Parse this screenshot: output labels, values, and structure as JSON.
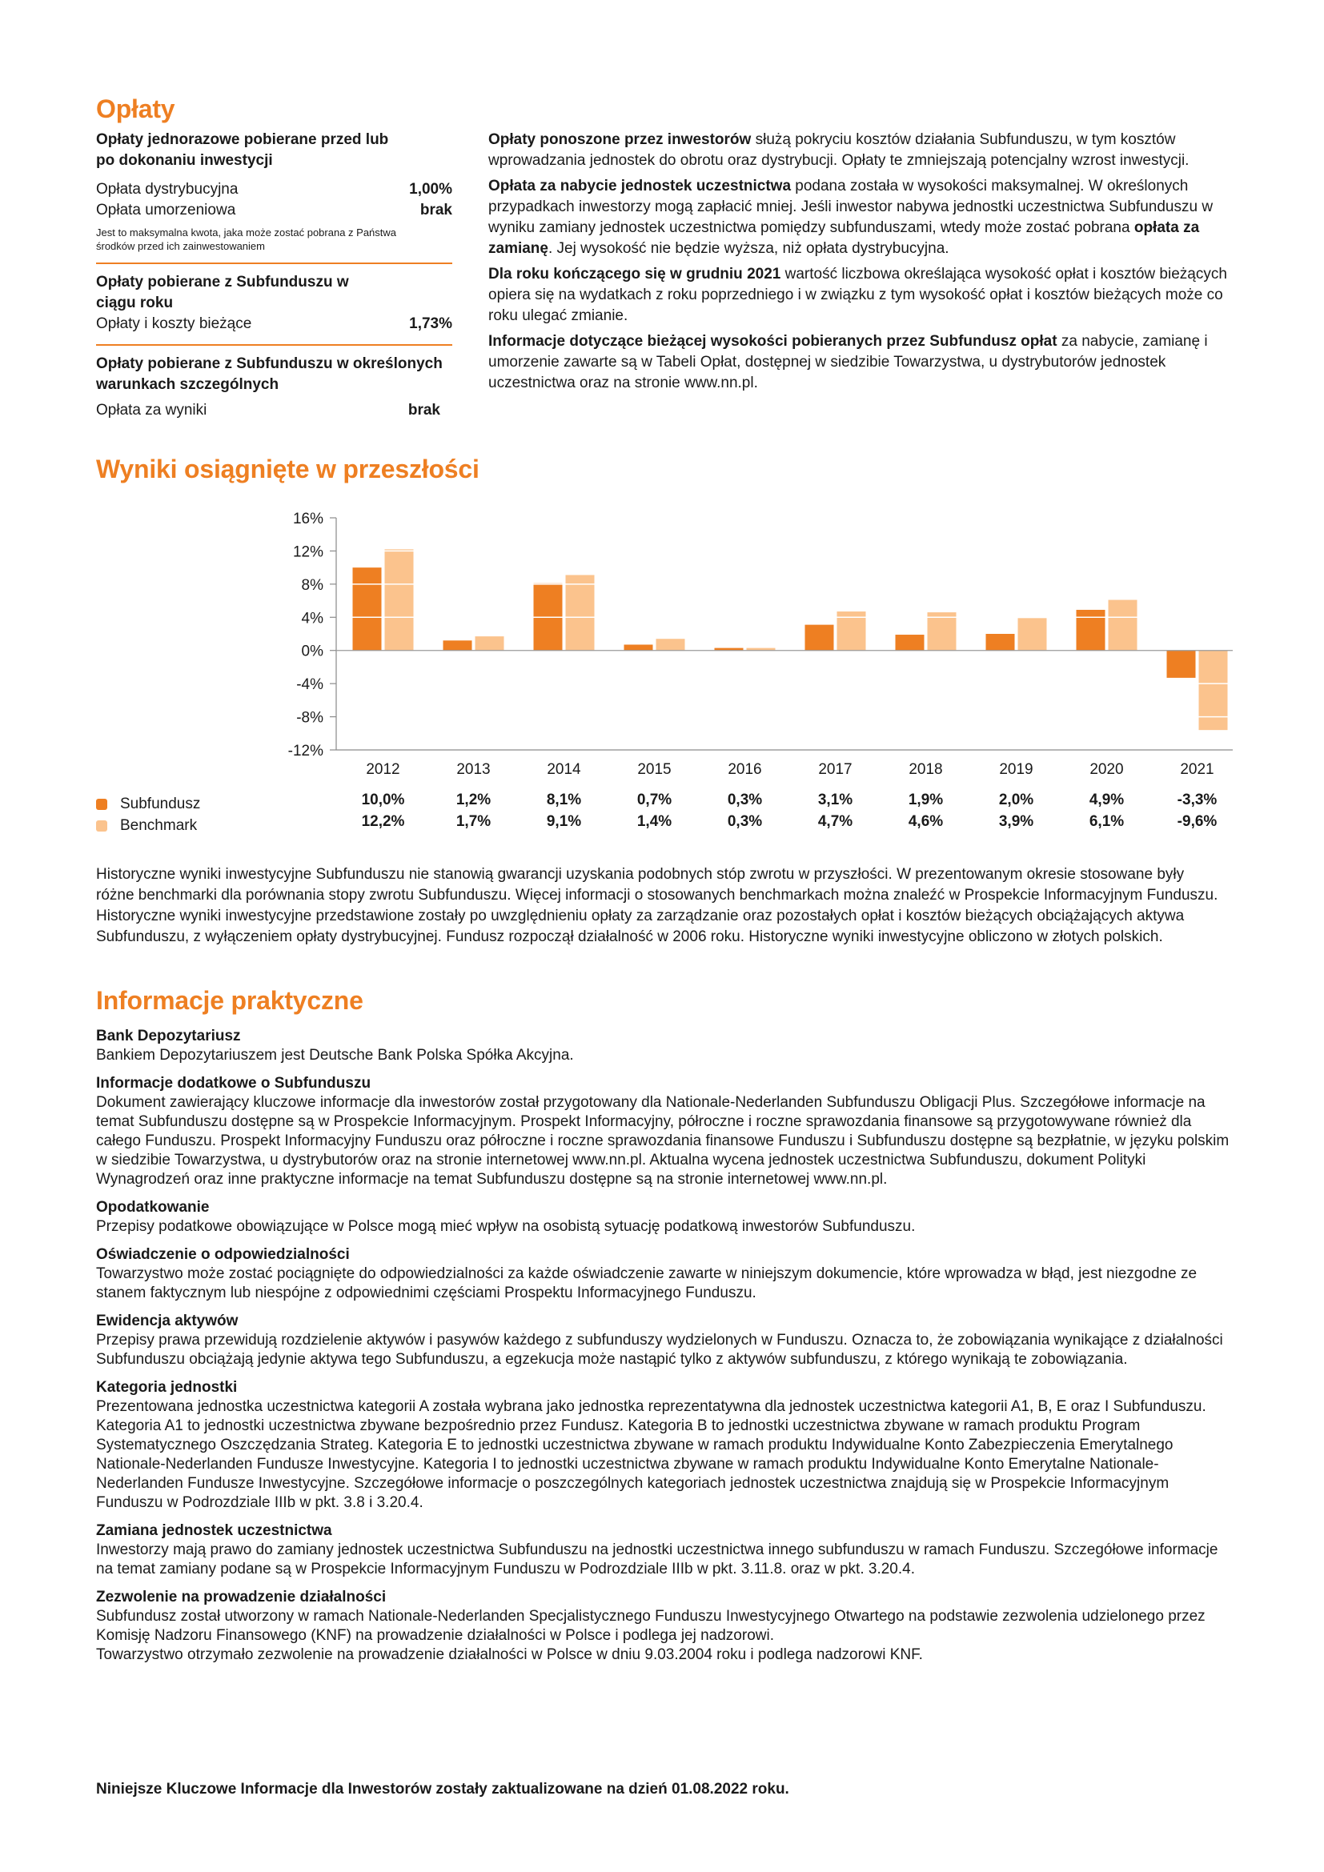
{
  "fees": {
    "title": "Opłaty",
    "group1_title": "Opłaty jednorazowe pobierane przed lub po dokonaniu inwestycji",
    "dist_label": "Opłata dystrybucyjna",
    "dist_value": "1,00%",
    "redemption_label": "Opłata umorzeniowa",
    "redemption_value": "brak",
    "max_note": "Jest to maksymalna kwota, jaka może zostać pobrana z Państwa środków przed ich zainwestowaniem",
    "group2_title": "Opłaty pobierane z Subfunduszu w ciągu roku",
    "ongoing_label": "Opłaty i koszty bieżące",
    "ongoing_value": "1,73%",
    "group3_title": "Opłaty pobierane z Subfunduszu w określonych warunkach szczególnych",
    "perf_label": "Opłata za wyniki",
    "perf_value": "brak",
    "p1_bold": "Opłaty ponoszone przez inwestorów",
    "p1_text": " służą pokryciu kosztów działania Subfunduszu, w tym kosztów wprowadzania jednostek do obrotu oraz dystrybucji. Opłaty te zmniejszają potencjalny wzrost inwestycji.",
    "p2_bold": "Opłata za nabycie jednostek uczestnictwa",
    "p2_text": " podana została w wysokości maksymalnej. W określonych przypadkach inwestorzy mogą zapłacić mniej. Jeśli inwestor nabywa jednostki uczestnictwa Subfunduszu w wyniku zamiany jednostek uczestnictwa pomiędzy subfunduszami, wtedy może zostać pobrana ",
    "p2_bold2": "opłata za zamianę",
    "p2_text2": ". Jej wysokość nie będzie wyższa, niż opłata dystrybucyjna.",
    "p3_bold": "Dla roku kończącego się w grudniu 2021",
    "p3_text": " wartość liczbowa określająca wysokość opłat i kosztów bieżących opiera się na wydatkach z roku poprzedniego i w związku z tym wysokość opłat i kosztów bieżących może co roku ulegać zmianie.",
    "p4_bold": "Informacje dotyczące bieżącej wysokości pobieranych przez Subfundusz opłat",
    "p4_text": " za nabycie, zamianę i umorzenie zawarte są w Tabeli Opłat, dostępnej w siedzibie Towarzystwa, u dystrybutorów jednostek uczestnictwa oraz na stronie www.nn.pl."
  },
  "performance": {
    "title": "Wyniki osiągnięte w przeszłości",
    "subfund_values_text": [
      "10,0%",
      "1,2%",
      "8,1%",
      "0,7%",
      "0,3%",
      "3,1%",
      "1,9%",
      "2,0%",
      "4,9%",
      "-3,3%"
    ],
    "benchmark_values_text": [
      "12,2%",
      "1,7%",
      "9,1%",
      "1,4%",
      "0,3%",
      "4,7%",
      "4,6%",
      "3,9%",
      "6,1%",
      "-9,6%"
    ],
    "history_text": "Historyczne wyniki inwestycyjne Subfunduszu nie stanowią gwarancji uzyskania podobnych stóp zwrotu w przyszłości. W prezentowanym okresie stosowane były różne benchmarki dla porównania stopy zwrotu Subfunduszu. Więcej informacji o stosowanych benchmarkach można znaleźć w Prospekcie Informacyjnym Funduszu. Historyczne wyniki inwestycyjne przedstawione zostały po uwzględnieniu opłaty za zarządzanie oraz pozostałych opłat i kosztów bieżących obciążających aktywa Subfunduszu, z wyłączeniem opłaty dystrybucyjnej. Fundusz rozpoczął działalność w 2006 roku. Historyczne wyniki inwestycyjne obliczono w złotych polskich."
  },
  "chart_data": {
    "type": "bar",
    "categories": [
      "2012",
      "2013",
      "2014",
      "2015",
      "2016",
      "2017",
      "2018",
      "2019",
      "2020",
      "2021"
    ],
    "series": [
      {
        "name": "Subfundusz",
        "values": [
          10.0,
          1.2,
          8.1,
          0.7,
          0.3,
          3.1,
          1.9,
          2.0,
          4.9,
          -3.3
        ],
        "color": "#ee7f22"
      },
      {
        "name": "Benchmark",
        "values": [
          12.2,
          1.7,
          9.1,
          1.4,
          0.3,
          4.7,
          4.6,
          3.9,
          6.1,
          -9.6
        ],
        "color": "#fbc38d"
      }
    ],
    "yticks": [
      "16%",
      "12%",
      "8%",
      "4%",
      "0%",
      "-4%",
      "-8%",
      "-12%"
    ],
    "ylim": [
      -12,
      16
    ],
    "ytick_values": [
      16,
      12,
      8,
      4,
      0,
      -4,
      -8,
      -12
    ],
    "gridlines": "white horizontal lines every 4% across bars",
    "legend_position": "bottom-left"
  },
  "info": {
    "title": "Informacje praktyczne",
    "sections": [
      {
        "title": "Bank Depozytariusz",
        "body": "Bankiem Depozytariuszem jest Deutsche Bank Polska Spółka Akcyjna."
      },
      {
        "title": "Informacje dodatkowe o Subfunduszu",
        "body": "Dokument zawierający kluczowe informacje dla inwestorów został przygotowany dla Nationale-Nederlanden Subfunduszu Obligacji Plus. Szczegółowe informacje na temat Subfunduszu dostępne są w Prospekcie Informacyjnym. Prospekt Informacyjny, półroczne i roczne sprawozdania finansowe są przygotowywane również dla całego Funduszu. Prospekt Informacyjny Funduszu oraz półroczne i roczne sprawozdania finansowe Funduszu i Subfunduszu dostępne są bezpłatnie, w języku polskim w siedzibie Towarzystwa, u dystrybutorów oraz na stronie internetowej www.nn.pl. Aktualna wycena jednostek uczestnictwa Subfunduszu, dokument Polityki Wynagrodzeń oraz inne praktyczne informacje na temat Subfunduszu dostępne są na stronie internetowej www.nn.pl."
      },
      {
        "title": "Opodatkowanie",
        "body": "Przepisy podatkowe obowiązujące w Polsce mogą mieć wpływ na osobistą sytuację podatkową inwestorów Subfunduszu."
      },
      {
        "title": "Oświadczenie o odpowiedzialności",
        "body": "Towarzystwo może zostać pociągnięte do odpowiedzialności za każde oświadczenie zawarte w niniejszym dokumencie, które wprowadza w błąd, jest niezgodne ze stanem faktycznym lub niespójne z odpowiednimi częściami Prospektu Informacyjnego Funduszu."
      },
      {
        "title": "Ewidencja aktywów",
        "body": "Przepisy prawa przewidują rozdzielenie aktywów i pasywów każdego z subfunduszy wydzielonych w Funduszu. Oznacza to, że zobowiązania wynikające z działalności Subfunduszu obciążają jedynie aktywa tego Subfunduszu, a egzekucja może nastąpić tylko z aktywów subfunduszu, z którego wynikają te zobowiązania."
      },
      {
        "title": "Kategoria jednostki",
        "body": "Prezentowana jednostka uczestnictwa kategorii A została wybrana jako jednostka reprezentatywna dla jednostek uczestnictwa kategorii A1, B, E oraz I Subfunduszu. Kategoria A1 to jednostki uczestnictwa zbywane bezpośrednio przez Fundusz. Kategoria B to jednostki uczestnictwa zbywane w ramach produktu Program Systematycznego Oszczędzania Strateg. Kategoria E to jednostki uczestnictwa zbywane w ramach produktu Indywidualne Konto Zabezpieczenia Emerytalnego Nationale-Nederlanden Fundusze Inwestycyjne. Kategoria I to jednostki uczestnictwa zbywane w ramach produktu Indywidualne Konto Emerytalne Nationale-Nederlanden Fundusze Inwestycyjne. Szczegółowe informacje o poszczególnych kategoriach jednostek uczestnictwa znajdują się w Prospekcie Informacyjnym Funduszu w Podrozdziale IIIb w pkt. 3.8 i 3.20.4."
      },
      {
        "title": "Zamiana jednostek uczestnictwa",
        "body": "Inwestorzy mają prawo do zamiany jednostek uczestnictwa Subfunduszu na jednostki uczestnictwa innego subfunduszu w ramach Funduszu. Szczegółowe informacje na temat zamiany podane są w Prospekcie Informacyjnym Funduszu w Podrozdziale IIIb w pkt. 3.11.8. oraz w pkt. 3.20.4."
      },
      {
        "title": "Zezwolenie na prowadzenie działalności",
        "body": "Subfundusz został utworzony w ramach Nationale-Nederlanden Specjalistycznego Funduszu Inwestycyjnego Otwartego na podstawie zezwolenia udzielonego przez Komisję Nadzoru Finansowego (KNF) na prowadzenie działalności w Polsce i podlega jej nadzorowi.\nTowarzystwo otrzymało zezwolenie na prowadzenie działalności w Polsce w dniu 9.03.2004 roku i podlega nadzorowi KNF."
      }
    ]
  },
  "footer": "Niniejsze Kluczowe Informacje dla Inwestorów zostały zaktualizowane na dzień 01.08.2022 roku."
}
